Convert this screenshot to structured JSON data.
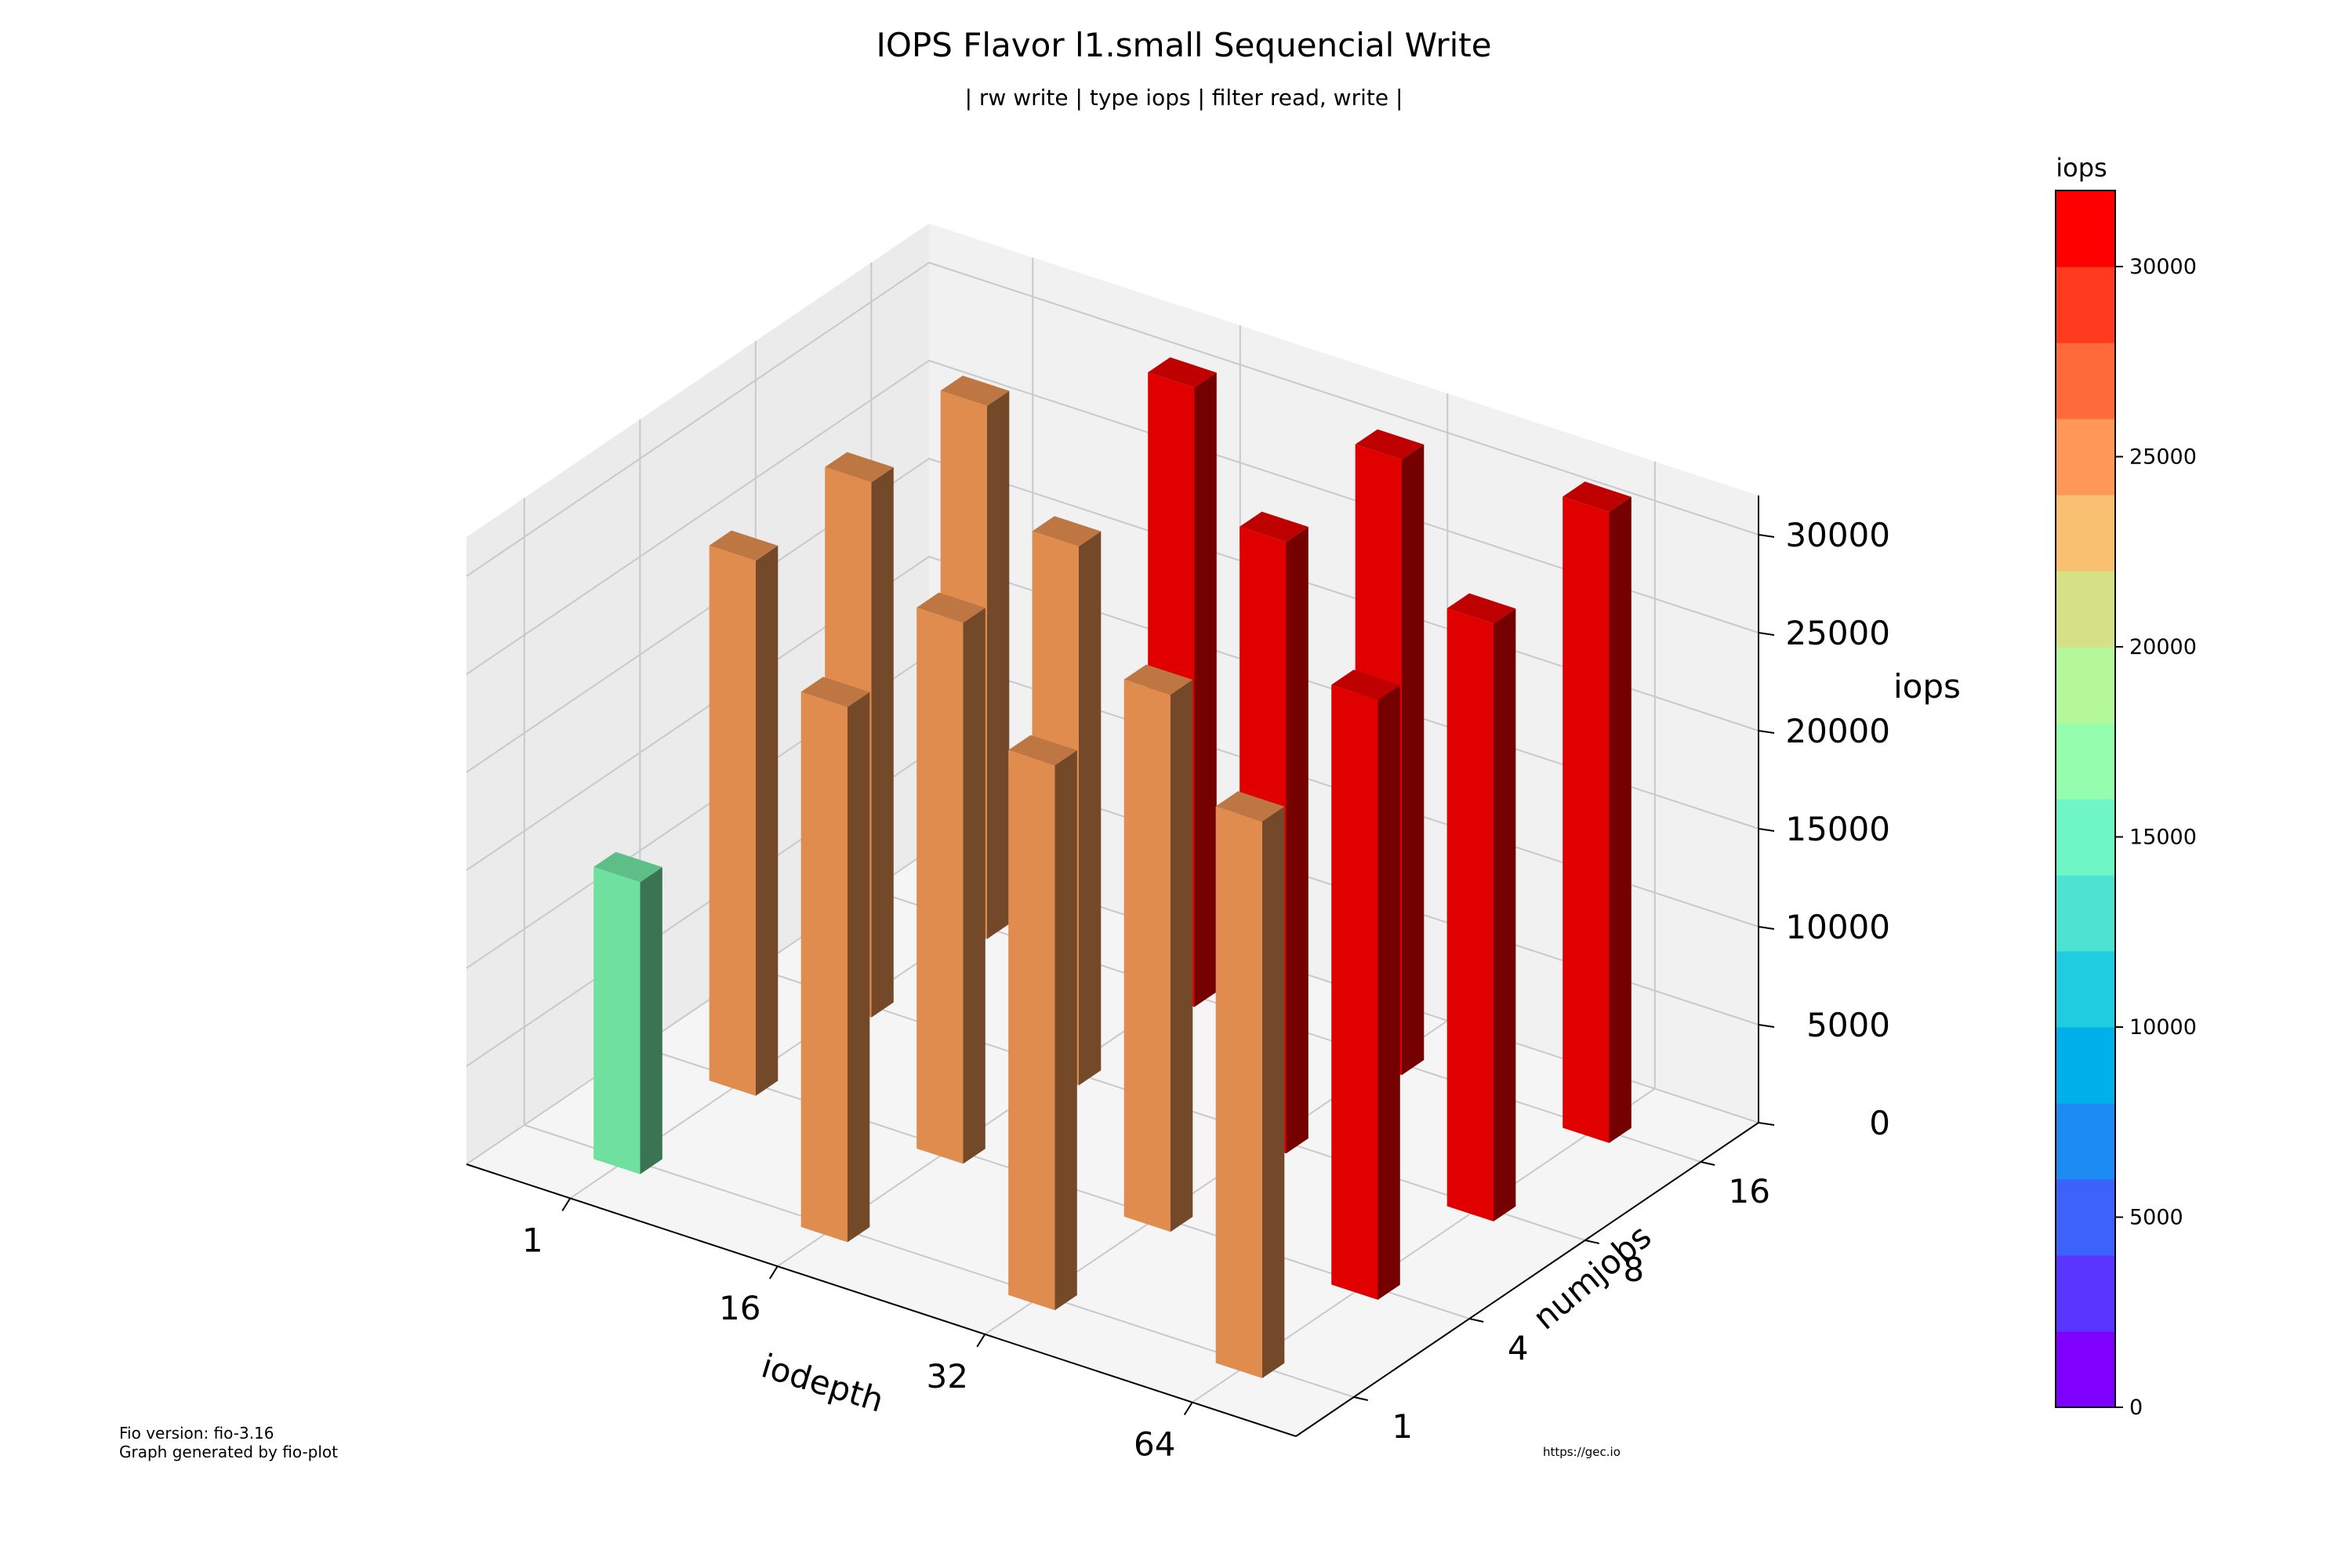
{
  "chart_data": {
    "type": "bar3d",
    "title": "IOPS Flavor l1.small Sequencial Write",
    "subtitle": "| rw write | type iops | filter read, write |",
    "xlabel": "iodepth",
    "ylabel": "numjobs",
    "zlabel": "iops",
    "x_categories": [
      "1",
      "16",
      "32",
      "64"
    ],
    "y_categories": [
      "1",
      "4",
      "8",
      "16"
    ],
    "zlim": [
      0,
      32000
    ],
    "z_ticks": [
      0,
      5000,
      10000,
      15000,
      20000,
      25000,
      30000
    ],
    "grid": true,
    "series": [
      {
        "numjobs": "1",
        "values": [
          14900,
          27300,
          27800,
          28400
        ]
      },
      {
        "numjobs": "4",
        "values": [
          27300,
          27600,
          27400,
          30600
        ]
      },
      {
        "numjobs": "8",
        "values": [
          27300,
          27500,
          31200,
          30500
        ]
      },
      {
        "numjobs": "16",
        "values": [
          27200,
          31600,
          31400,
          32200
        ]
      }
    ],
    "colorbar": {
      "label": "iops",
      "ticks": [
        0,
        5000,
        10000,
        15000,
        20000,
        25000,
        30000
      ],
      "max": 32000,
      "colors": [
        "#8000ff",
        "#5a35ff",
        "#3b63fb",
        "#1c8cf3",
        "#00b0eb",
        "#20cce0",
        "#4ce3d3",
        "#6ef6c6",
        "#94fdae",
        "#b4f89a",
        "#d6e084",
        "#f8c070",
        "#ff9856",
        "#ff6a3a",
        "#ff3a1e",
        "#ff0000"
      ]
    },
    "bar_colors": {
      "low": "#6fe0a0",
      "mid": "#e08c4e",
      "high": "#e00000"
    }
  },
  "footer": {
    "fio_version": "Fio version: fio-3.16",
    "generator": "Graph generated by fio-plot",
    "url": "https://gec.io"
  }
}
